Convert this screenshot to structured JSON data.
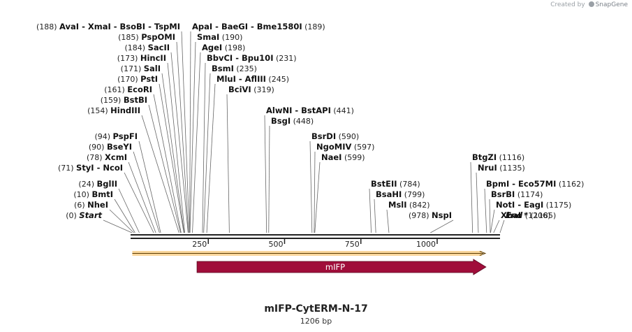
{
  "credit": {
    "prefix": "Created by",
    "brand": "SnapGene"
  },
  "title": "mIFP-CytERM-N-17",
  "subtitle": "1206 bp",
  "sequence": {
    "length": 1206,
    "ticks": [
      250,
      500,
      750,
      1000
    ]
  },
  "features": [
    {
      "name": "mIFP",
      "type": "cds-arrow",
      "start": 213,
      "end": 1160,
      "color": "#a00d3a"
    },
    {
      "name": "orf",
      "type": "orf-line",
      "start": 1,
      "end": 1160,
      "color": "#f5a623"
    }
  ],
  "sites": [
    {
      "side": "left",
      "text": [
        {
          "n": "AvaI"
        },
        {
          "n": "XmaI"
        },
        {
          "n": "BsoBI"
        },
        {
          "n": "TspMI"
        }
      ],
      "pos": 188
    },
    {
      "side": "left",
      "text": [
        {
          "n": "PspOMI"
        }
      ],
      "pos": 185
    },
    {
      "side": "left",
      "text": [
        {
          "n": "SacII"
        }
      ],
      "pos": 184
    },
    {
      "side": "left",
      "text": [
        {
          "n": "HincII"
        }
      ],
      "pos": 173
    },
    {
      "side": "left",
      "text": [
        {
          "n": "SalI"
        }
      ],
      "pos": 171
    },
    {
      "side": "left",
      "text": [
        {
          "n": "PstI"
        }
      ],
      "pos": 170
    },
    {
      "side": "left",
      "text": [
        {
          "n": "EcoRI"
        }
      ],
      "pos": 161
    },
    {
      "side": "left",
      "text": [
        {
          "n": "BstBI"
        }
      ],
      "pos": 159
    },
    {
      "side": "left",
      "text": [
        {
          "n": "HindIII"
        }
      ],
      "pos": 154
    },
    {
      "side": "left",
      "text": [
        {
          "n": "PspFI"
        }
      ],
      "pos": 94
    },
    {
      "side": "left",
      "text": [
        {
          "n": "BseYI"
        }
      ],
      "pos": 90
    },
    {
      "side": "left",
      "text": [
        {
          "n": "XcmI"
        }
      ],
      "pos": 78
    },
    {
      "side": "left",
      "text": [
        {
          "n": "StyI"
        },
        {
          "n": "NcoI"
        }
      ],
      "pos": 71
    },
    {
      "side": "left",
      "text": [
        {
          "n": "BglII"
        }
      ],
      "pos": 24
    },
    {
      "side": "left",
      "text": [
        {
          "n": "BmtI"
        }
      ],
      "pos": 10
    },
    {
      "side": "left",
      "text": [
        {
          "n": "NheI"
        }
      ],
      "pos": 6
    },
    {
      "side": "left",
      "text": [
        {
          "n": "Start",
          "i": true
        }
      ],
      "pos": 0
    },
    {
      "side": "right",
      "text": [
        {
          "n": "ApaI"
        },
        {
          "n": "BaeGI"
        },
        {
          "n": "Bme1580I"
        }
      ],
      "pos": 189
    },
    {
      "side": "right",
      "text": [
        {
          "n": "SmaI"
        }
      ],
      "pos": 190
    },
    {
      "side": "right",
      "text": [
        {
          "n": "AgeI"
        }
      ],
      "pos": 198
    },
    {
      "side": "right",
      "text": [
        {
          "n": "BbvCI"
        },
        {
          "n": "Bpu10I"
        }
      ],
      "pos": 231
    },
    {
      "side": "right",
      "text": [
        {
          "n": "BsmI"
        }
      ],
      "pos": 235
    },
    {
      "side": "right",
      "text": [
        {
          "n": "MluI"
        },
        {
          "n": "AflIII"
        }
      ],
      "pos": 245
    },
    {
      "side": "right",
      "text": [
        {
          "n": "BciVI"
        }
      ],
      "pos": 319
    },
    {
      "side": "right",
      "text": [
        {
          "n": "AlwNI"
        },
        {
          "n": "BstAPI"
        }
      ],
      "pos": 441
    },
    {
      "side": "right",
      "text": [
        {
          "n": "BsgI"
        }
      ],
      "pos": 448
    },
    {
      "side": "right",
      "text": [
        {
          "n": "BsrDI"
        }
      ],
      "pos": 590
    },
    {
      "side": "right",
      "text": [
        {
          "n": "NgoMIV"
        }
      ],
      "pos": 597
    },
    {
      "side": "right",
      "text": [
        {
          "n": "NaeI"
        }
      ],
      "pos": 599
    },
    {
      "side": "right",
      "text": [
        {
          "n": "BstEII"
        }
      ],
      "pos": 784
    },
    {
      "side": "right",
      "text": [
        {
          "n": "BsaHI"
        }
      ],
      "pos": 799
    },
    {
      "side": "right",
      "text": [
        {
          "n": "MslI"
        }
      ],
      "pos": 842
    },
    {
      "side": "left",
      "text": [
        {
          "n": "NspI"
        }
      ],
      "pos": 978
    },
    {
      "side": "right",
      "text": [
        {
          "n": "BtgZI"
        }
      ],
      "pos": 1116
    },
    {
      "side": "right",
      "text": [
        {
          "n": "NruI"
        }
      ],
      "pos": 1135
    },
    {
      "side": "right",
      "text": [
        {
          "n": "BpmI"
        },
        {
          "n": "Eco57MI"
        }
      ],
      "pos": 1162
    },
    {
      "side": "right",
      "text": [
        {
          "n": "BsrBI"
        }
      ],
      "pos": 1174
    },
    {
      "side": "right",
      "text": [
        {
          "n": "NotI"
        },
        {
          "n": "EagI"
        }
      ],
      "pos": 1175
    },
    {
      "side": "right",
      "text": [
        {
          "n": "XbaI *"
        }
      ],
      "pos": 1185
    },
    {
      "side": "right",
      "text": [
        {
          "n": "End",
          "i": true
        }
      ],
      "pos": 1206
    }
  ]
}
